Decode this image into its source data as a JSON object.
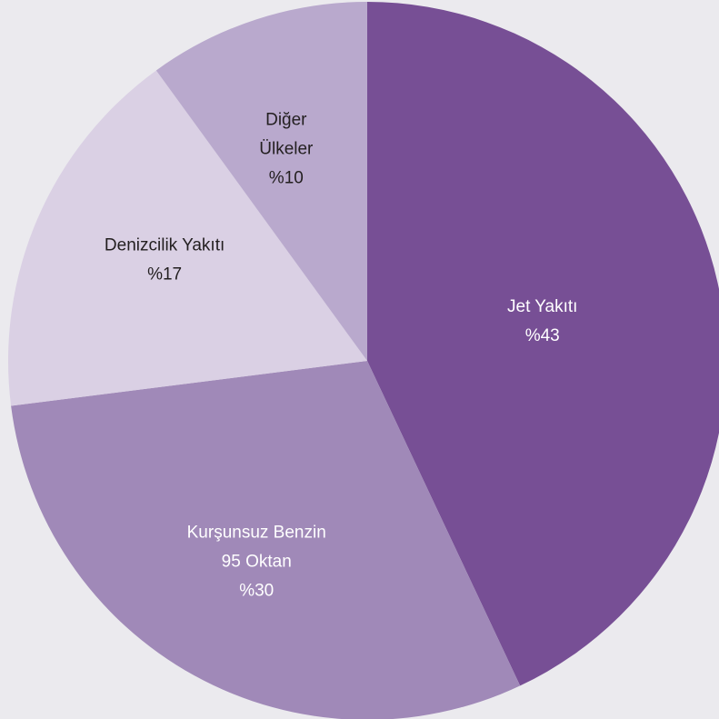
{
  "chart_data": {
    "type": "pie",
    "title": "",
    "start_angle_deg": 0,
    "direction": "clockwise",
    "slices": [
      {
        "label_lines": [
          "Jet Yakıtı",
          "%43"
        ],
        "value": 43,
        "color": "#774f95",
        "text_color": "#ffffff"
      },
      {
        "label_lines": [
          "Kurşunsuz Benzin",
          "95 Oktan",
          "%30"
        ],
        "value": 30,
        "color": "#a089b8",
        "text_color": "#ffffff"
      },
      {
        "label_lines": [
          "Denizcilik Yakıtı",
          "%17"
        ],
        "value": 17,
        "color": "#dad0e4",
        "text_color": "#231f20"
      },
      {
        "label_lines": [
          "Diğer",
          "Ülkeler",
          "%10"
        ],
        "value": 10,
        "color": "#b9a9cd",
        "text_color": "#231f20"
      }
    ]
  },
  "background_color": "#ebeaee"
}
